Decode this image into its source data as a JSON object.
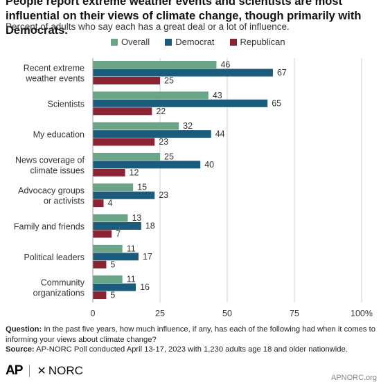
{
  "title": "People report extreme weather events and scientists are most influential on their views of climate change, though primarily with Democrats.",
  "subtitle": "Percent of adults who say each has a great deal or a lot of influence.",
  "colors": {
    "overall": "#6ba588",
    "democrat": "#1b5c7c",
    "republican": "#8b2432",
    "grid": "#cfcfcf"
  },
  "chart_data": {
    "type": "bar",
    "orientation": "horizontal",
    "categories": [
      [
        "Recent extreme",
        "weather events"
      ],
      [
        "Scientists"
      ],
      [
        "My education"
      ],
      [
        "News coverage of",
        "climate issues"
      ],
      [
        "Advocacy groups",
        "or activists"
      ],
      [
        "Family and friends"
      ],
      [
        "Political leaders"
      ],
      [
        "Community",
        "organizations"
      ]
    ],
    "series": [
      {
        "name": "Overall",
        "values": [
          46,
          43,
          32,
          25,
          15,
          13,
          11,
          11
        ]
      },
      {
        "name": "Democrat",
        "values": [
          67,
          65,
          44,
          40,
          23,
          18,
          17,
          16
        ]
      },
      {
        "name": "Republican",
        "values": [
          25,
          22,
          23,
          12,
          4,
          7,
          5,
          5
        ]
      }
    ],
    "xlim": [
      0,
      100
    ],
    "xticks": [
      "0",
      "25",
      "50",
      "75",
      "100%"
    ],
    "grid": true,
    "legend_position": "top"
  },
  "footer": {
    "question_label": "Question:",
    "question_text": "In the past five years, how much influence, if any, has each of the following had when it comes to informing your views about climate change?",
    "source_label": "Source:",
    "source_text": "AP-NORC Poll conducted April 13-17, 2023 with 1,230 adults age 18 and older nationwide."
  },
  "logos": {
    "ap": "AP",
    "norc": "NORC",
    "website": "APNORC.org"
  }
}
